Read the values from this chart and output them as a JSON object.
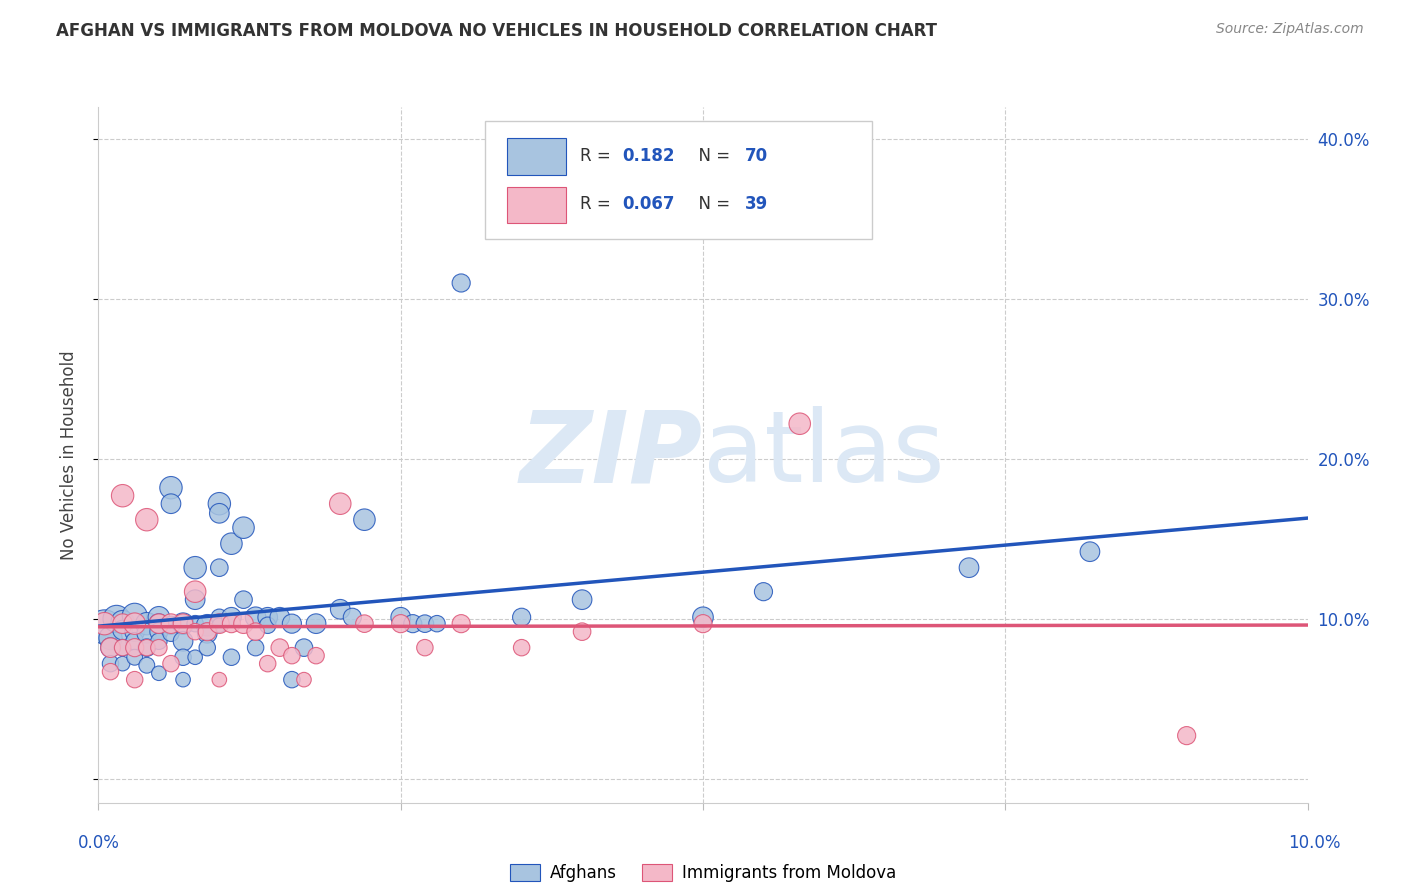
{
  "title": "AFGHAN VS IMMIGRANTS FROM MOLDOVA NO VEHICLES IN HOUSEHOLD CORRELATION CHART",
  "source": "Source: ZipAtlas.com",
  "ylabel": "No Vehicles in Household",
  "xlim": [
    0.0,
    0.1
  ],
  "ylim": [
    -0.015,
    0.42
  ],
  "blue_R": 0.182,
  "blue_N": 70,
  "pink_R": 0.067,
  "pink_N": 39,
  "blue_color": "#a8c4e0",
  "pink_color": "#f4b8c8",
  "blue_line_color": "#2255bb",
  "pink_line_color": "#dd5577",
  "watermark_color": "#dce8f5",
  "legend1_label": "Afghans",
  "legend2_label": "Immigrants from Moldova",
  "blue_x": [
    0.0005,
    0.001,
    0.001,
    0.001,
    0.0015,
    0.002,
    0.002,
    0.002,
    0.002,
    0.003,
    0.003,
    0.003,
    0.003,
    0.004,
    0.004,
    0.004,
    0.004,
    0.005,
    0.005,
    0.005,
    0.005,
    0.005,
    0.006,
    0.006,
    0.006,
    0.006,
    0.007,
    0.007,
    0.007,
    0.007,
    0.008,
    0.008,
    0.008,
    0.008,
    0.009,
    0.009,
    0.009,
    0.01,
    0.01,
    0.01,
    0.01,
    0.01,
    0.011,
    0.011,
    0.011,
    0.012,
    0.012,
    0.013,
    0.013,
    0.014,
    0.014,
    0.015,
    0.016,
    0.016,
    0.017,
    0.018,
    0.02,
    0.021,
    0.022,
    0.025,
    0.026,
    0.027,
    0.028,
    0.03,
    0.035,
    0.04,
    0.05,
    0.055,
    0.072,
    0.082
  ],
  "blue_y": [
    0.095,
    0.088,
    0.082,
    0.072,
    0.1,
    0.098,
    0.093,
    0.082,
    0.072,
    0.102,
    0.092,
    0.086,
    0.076,
    0.097,
    0.091,
    0.082,
    0.071,
    0.101,
    0.097,
    0.092,
    0.086,
    0.066,
    0.182,
    0.172,
    0.096,
    0.091,
    0.097,
    0.086,
    0.076,
    0.062,
    0.132,
    0.112,
    0.097,
    0.076,
    0.096,
    0.091,
    0.082,
    0.172,
    0.166,
    0.132,
    0.101,
    0.096,
    0.147,
    0.101,
    0.076,
    0.157,
    0.112,
    0.101,
    0.082,
    0.101,
    0.096,
    0.101,
    0.097,
    0.062,
    0.082,
    0.097,
    0.106,
    0.101,
    0.162,
    0.101,
    0.097,
    0.097,
    0.097,
    0.31,
    0.101,
    0.112,
    0.101,
    0.117,
    0.132,
    0.142
  ],
  "blue_sizes": [
    600,
    280,
    200,
    140,
    380,
    280,
    200,
    140,
    110,
    320,
    200,
    160,
    130,
    260,
    200,
    160,
    130,
    240,
    200,
    170,
    140,
    110,
    260,
    200,
    170,
    140,
    240,
    200,
    140,
    110,
    260,
    200,
    140,
    110,
    240,
    200,
    140,
    260,
    200,
    160,
    140,
    110,
    240,
    200,
    140,
    240,
    160,
    220,
    140,
    200,
    140,
    200,
    190,
    140,
    160,
    200,
    200,
    170,
    240,
    200,
    170,
    160,
    140,
    170,
    170,
    200,
    220,
    170,
    200,
    200
  ],
  "pink_x": [
    0.0005,
    0.001,
    0.001,
    0.002,
    0.002,
    0.002,
    0.003,
    0.003,
    0.003,
    0.004,
    0.004,
    0.005,
    0.005,
    0.006,
    0.006,
    0.007,
    0.008,
    0.008,
    0.009,
    0.01,
    0.01,
    0.011,
    0.012,
    0.013,
    0.014,
    0.015,
    0.016,
    0.017,
    0.018,
    0.02,
    0.022,
    0.025,
    0.027,
    0.03,
    0.035,
    0.04,
    0.05,
    0.058,
    0.09
  ],
  "pink_y": [
    0.097,
    0.082,
    0.067,
    0.177,
    0.097,
    0.082,
    0.097,
    0.082,
    0.062,
    0.162,
    0.082,
    0.097,
    0.082,
    0.097,
    0.072,
    0.097,
    0.117,
    0.092,
    0.092,
    0.097,
    0.062,
    0.097,
    0.097,
    0.092,
    0.072,
    0.082,
    0.077,
    0.062,
    0.077,
    0.172,
    0.097,
    0.097,
    0.082,
    0.097,
    0.082,
    0.092,
    0.097,
    0.222,
    0.027
  ],
  "pink_sizes": [
    260,
    200,
    140,
    260,
    200,
    140,
    240,
    170,
    140,
    260,
    140,
    200,
    140,
    200,
    140,
    200,
    240,
    140,
    170,
    200,
    110,
    170,
    200,
    160,
    140,
    160,
    140,
    110,
    140,
    240,
    160,
    170,
    140,
    170,
    140,
    160,
    170,
    240,
    170
  ]
}
